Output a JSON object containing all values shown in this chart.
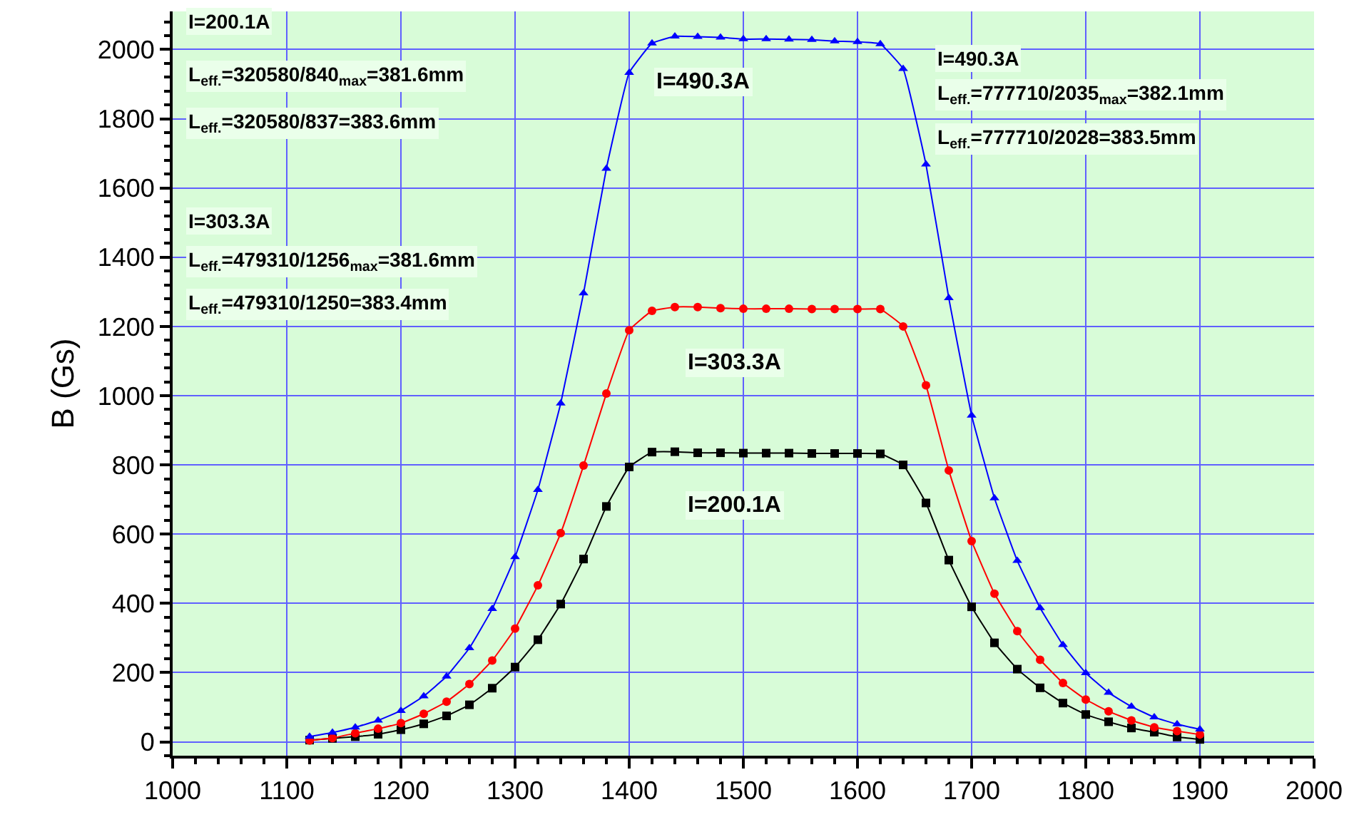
{
  "chart_data": {
    "type": "line",
    "ylabel": "B (Gs)",
    "x": [
      1120,
      1140,
      1160,
      1180,
      1200,
      1220,
      1240,
      1260,
      1280,
      1300,
      1320,
      1340,
      1360,
      1380,
      1400,
      1420,
      1440,
      1460,
      1480,
      1500,
      1520,
      1540,
      1560,
      1580,
      1600,
      1620,
      1640,
      1660,
      1680,
      1700,
      1720,
      1740,
      1760,
      1780,
      1800,
      1820,
      1840,
      1860,
      1880,
      1900
    ],
    "series": [
      {
        "color": "#000000",
        "marker": "square",
        "values": [
          5,
          10,
          15,
          22,
          35,
          52,
          75,
          107,
          155,
          216,
          295,
          398,
          528,
          680,
          794,
          837,
          838,
          835,
          835,
          834,
          834,
          834,
          833,
          833,
          833,
          832,
          800,
          690,
          525,
          390,
          286,
          210,
          156,
          112,
          79,
          58,
          40,
          28,
          14,
          7
        ]
      },
      {
        "color": "#ff0000",
        "marker": "circle",
        "values": [
          4,
          11,
          25,
          38,
          54,
          81,
          116,
          167,
          235,
          327,
          452,
          603,
          798,
          1006,
          1189,
          1245,
          1256,
          1256,
          1253,
          1251,
          1251,
          1251,
          1250,
          1250,
          1250,
          1250,
          1200,
          1030,
          784,
          580,
          428,
          320,
          237,
          170,
          122,
          88,
          62,
          42,
          31,
          21
        ]
      },
      {
        "color": "#0000ff",
        "marker": "triangle",
        "values": [
          15,
          27,
          42,
          62,
          90,
          132,
          189,
          271,
          384,
          534,
          728,
          978,
          1296,
          1656,
          1933,
          2018,
          2038,
          2037,
          2035,
          2030,
          2030,
          2029,
          2028,
          2024,
          2022,
          2016,
          1944,
          1668,
          1282,
          943,
          704,
          523,
          387,
          280,
          199,
          142,
          102,
          71,
          51,
          36
        ]
      }
    ],
    "xlim": [
      1000,
      2000
    ],
    "xticks": [
      1000,
      1100,
      1200,
      1300,
      1400,
      1500,
      1600,
      1700,
      1800,
      1900,
      2000
    ],
    "ylim": [
      -40,
      2110
    ],
    "yticks": [
      0,
      200,
      400,
      600,
      800,
      1000,
      1200,
      1400,
      1600,
      1800,
      2000
    ],
    "grid": true,
    "line_style": "solid",
    "annotations": [
      "I=200.1A",
      "L$_{eff.}$=320580/840$_{max}$=381.6mm",
      "L$_{eff.}$=320580/837=383.6mm",
      "I=303.3A",
      "L$_{eff.}$=479310/1256$_{max}$=381.6mm",
      "L$_{eff.}$=479310/1250=383.4mm",
      "I=490.3A",
      "L$_{eff.}$=777710/2035$_{max}$=382.1mm",
      "L$_{eff.}$=777710/2028=383.5mm",
      "I=490.3A",
      "I=303.3A",
      "I=200.1A"
    ]
  }
}
